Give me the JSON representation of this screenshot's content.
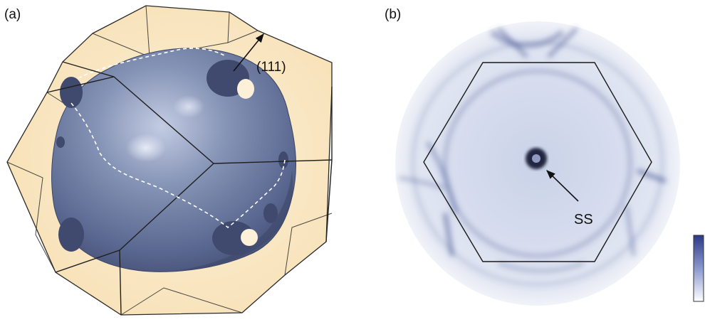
{
  "panels": {
    "a": {
      "label": "(a)",
      "direction_label": "(111)"
    },
    "b": {
      "label": "(b)",
      "ss_label": "SS"
    }
  },
  "colors": {
    "zone_fill": "#fbe8c6",
    "zone_edge": "#2a2a2a",
    "surface_dark": "#4e5b7e",
    "surface_mid": "#7886a8",
    "surface_light": "#b9c3dc",
    "arpes_bg": "#dfe5f2",
    "arpes_feature": "#2a3a78",
    "colorbar_top": "#2c3a86",
    "colorbar_bottom": "#ffffff"
  }
}
